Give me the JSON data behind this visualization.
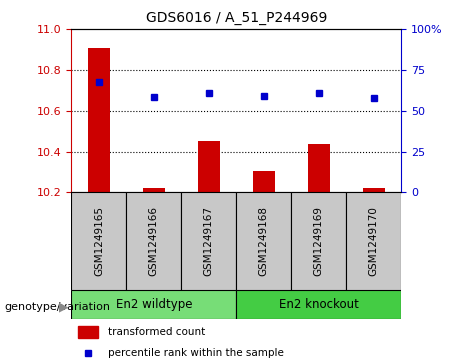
{
  "title": "GDS6016 / A_51_P244969",
  "samples": [
    "GSM1249165",
    "GSM1249166",
    "GSM1249167",
    "GSM1249168",
    "GSM1249169",
    "GSM1249170"
  ],
  "red_values": [
    10.905,
    10.22,
    10.45,
    10.305,
    10.435,
    10.22
  ],
  "blue_values": [
    10.74,
    10.665,
    10.685,
    10.67,
    10.685,
    10.662
  ],
  "ylim_left": [
    10.2,
    11.0
  ],
  "ylim_right": [
    0,
    100
  ],
  "yticks_left": [
    10.2,
    10.4,
    10.6,
    10.8,
    11.0
  ],
  "yticks_right": [
    0,
    25,
    50,
    75,
    100
  ],
  "ytick_labels_right": [
    "0",
    "25",
    "50",
    "75",
    "100%"
  ],
  "baseline": 10.2,
  "groups": [
    {
      "label": "En2 wildtype",
      "indices": [
        0,
        1,
        2
      ],
      "color": "#77DD77"
    },
    {
      "label": "En2 knockout",
      "indices": [
        3,
        4,
        5
      ],
      "color": "#44CC44"
    }
  ],
  "group_label": "genotype/variation",
  "legend_red": "transformed count",
  "legend_blue": "percentile rank within the sample",
  "bar_color": "#CC0000",
  "marker_color": "#0000CC",
  "tick_label_color_left": "#CC0000",
  "tick_label_color_right": "#0000CC",
  "sample_box_color": "#C8C8C8",
  "dotted_grid_values": [
    10.4,
    10.6,
    10.8
  ]
}
